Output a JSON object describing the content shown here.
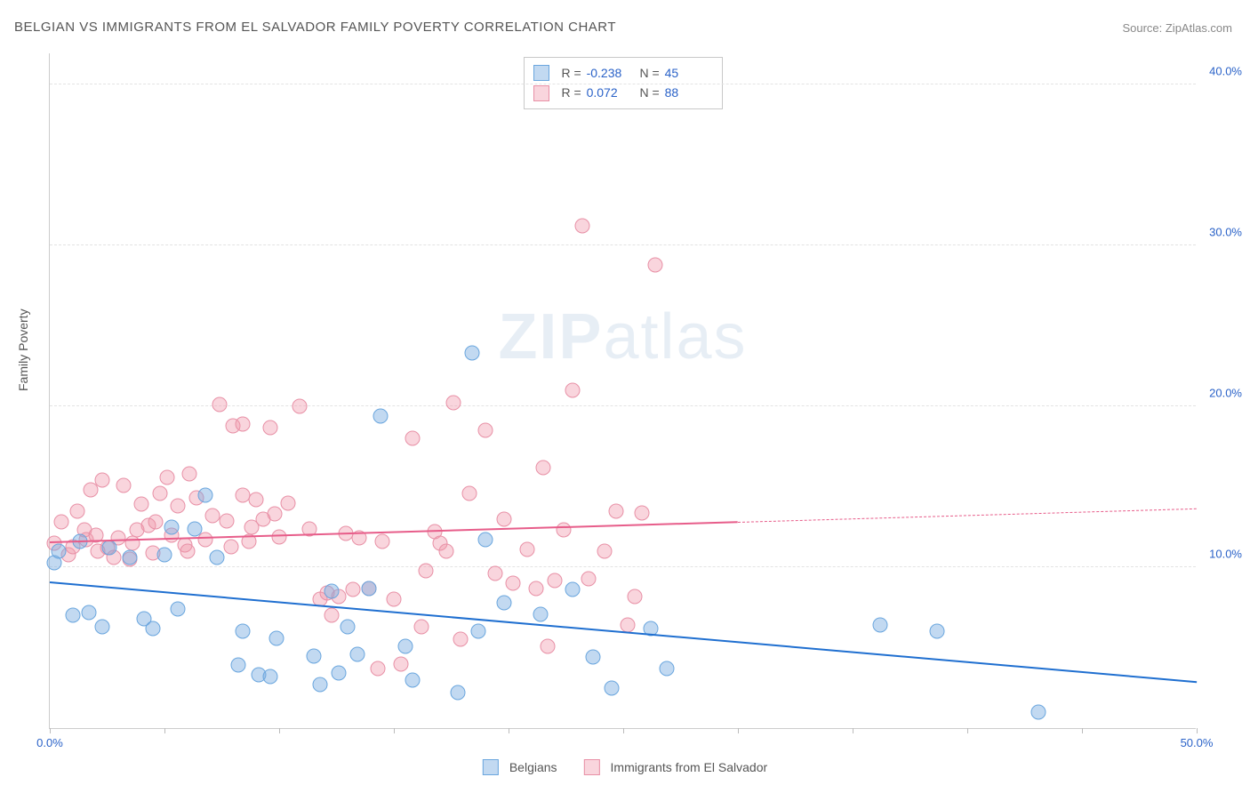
{
  "title": "BELGIAN VS IMMIGRANTS FROM EL SALVADOR FAMILY POVERTY CORRELATION CHART",
  "source_prefix": "Source: ",
  "source_name": "ZipAtlas.com",
  "y_axis_label": "Family Poverty",
  "watermark_a": "ZIP",
  "watermark_b": "atlas",
  "colors": {
    "series_a_fill": "rgba(120,170,225,0.45)",
    "series_a_stroke": "#6aa6de",
    "series_a_line": "#1f6fd0",
    "series_b_fill": "rgba(240,150,170,0.4)",
    "series_b_stroke": "#e890a6",
    "series_b_line": "#e75d8a",
    "tick_text": "#2a62c8",
    "grid": "#e3e3e3",
    "axis": "#ccc"
  },
  "chart": {
    "type": "scatter",
    "xlim": [
      0,
      50
    ],
    "ylim": [
      0,
      42
    ],
    "xticks": [
      0,
      5,
      10,
      15,
      20,
      25,
      30,
      35,
      40,
      45,
      50
    ],
    "xtick_labels": {
      "0": "0.0%",
      "50": "50.0%"
    },
    "yticks": [
      10,
      20,
      30,
      40
    ],
    "ytick_labels": {
      "10": "10.0%",
      "20": "20.0%",
      "30": "30.0%",
      "40": "40.0%"
    },
    "marker_radius": 8.5,
    "marker_stroke_width": 1,
    "line_width": 2
  },
  "stats": {
    "r_label": "R =",
    "n_label": "N =",
    "series_a": {
      "R": "-0.238",
      "N": "45"
    },
    "series_b": {
      "R": "0.072",
      "N": "88"
    }
  },
  "legend": {
    "series_a": "Belgians",
    "series_b": "Immigrants from El Salvador"
  },
  "trend": {
    "series_a": {
      "x1": 0,
      "y1": 9.0,
      "x2": 50,
      "y2": 2.8,
      "solid_until_x": 50
    },
    "series_b": {
      "x1": 0,
      "y1": 11.5,
      "x2": 50,
      "y2": 13.6,
      "solid_until_x": 30
    }
  },
  "series_a_points": [
    [
      0.2,
      10.3
    ],
    [
      0.4,
      11.0
    ],
    [
      1.0,
      7.0
    ],
    [
      1.3,
      11.6
    ],
    [
      1.7,
      7.2
    ],
    [
      2.3,
      6.3
    ],
    [
      2.6,
      11.2
    ],
    [
      3.5,
      10.6
    ],
    [
      4.1,
      6.8
    ],
    [
      4.5,
      6.2
    ],
    [
      5.0,
      10.8
    ],
    [
      5.3,
      12.5
    ],
    [
      5.6,
      7.4
    ],
    [
      6.3,
      12.4
    ],
    [
      6.8,
      14.5
    ],
    [
      7.3,
      10.6
    ],
    [
      8.2,
      3.9
    ],
    [
      8.4,
      6.0
    ],
    [
      9.1,
      3.3
    ],
    [
      9.6,
      3.2
    ],
    [
      9.9,
      5.6
    ],
    [
      11.5,
      4.5
    ],
    [
      11.8,
      2.7
    ],
    [
      12.3,
      8.5
    ],
    [
      12.6,
      3.4
    ],
    [
      13.0,
      6.3
    ],
    [
      13.4,
      4.6
    ],
    [
      13.9,
      8.7
    ],
    [
      14.4,
      19.4
    ],
    [
      15.5,
      5.1
    ],
    [
      15.8,
      3.0
    ],
    [
      17.8,
      2.2
    ],
    [
      18.4,
      23.3
    ],
    [
      18.7,
      6.0
    ],
    [
      19.0,
      11.7
    ],
    [
      19.8,
      7.8
    ],
    [
      21.4,
      7.1
    ],
    [
      22.8,
      8.6
    ],
    [
      23.7,
      4.4
    ],
    [
      24.5,
      2.5
    ],
    [
      26.2,
      6.2
    ],
    [
      26.9,
      3.7
    ],
    [
      36.2,
      6.4
    ],
    [
      38.7,
      6.0
    ],
    [
      43.1,
      1.0
    ]
  ],
  "series_b_points": [
    [
      0.2,
      11.5
    ],
    [
      0.5,
      12.8
    ],
    [
      0.8,
      10.8
    ],
    [
      1.0,
      11.3
    ],
    [
      1.2,
      13.5
    ],
    [
      1.5,
      12.3
    ],
    [
      1.8,
      14.8
    ],
    [
      2.1,
      11.0
    ],
    [
      2.3,
      15.4
    ],
    [
      2.5,
      11.2
    ],
    [
      2.8,
      10.6
    ],
    [
      3.0,
      11.8
    ],
    [
      3.2,
      15.1
    ],
    [
      3.5,
      10.5
    ],
    [
      3.8,
      12.3
    ],
    [
      4.0,
      13.9
    ],
    [
      4.3,
      12.6
    ],
    [
      4.5,
      10.9
    ],
    [
      4.8,
      14.6
    ],
    [
      5.1,
      15.6
    ],
    [
      5.3,
      12.0
    ],
    [
      5.6,
      13.8
    ],
    [
      5.9,
      11.4
    ],
    [
      6.1,
      15.8
    ],
    [
      6.4,
      14.3
    ],
    [
      6.8,
      11.7
    ],
    [
      7.1,
      13.2
    ],
    [
      7.4,
      20.1
    ],
    [
      7.7,
      12.9
    ],
    [
      8.0,
      18.8
    ],
    [
      8.4,
      18.9
    ],
    [
      8.4,
      14.5
    ],
    [
      8.7,
      11.6
    ],
    [
      9.0,
      14.2
    ],
    [
      9.3,
      13.0
    ],
    [
      9.6,
      18.7
    ],
    [
      10.0,
      11.9
    ],
    [
      10.4,
      14.0
    ],
    [
      10.9,
      20.0
    ],
    [
      11.3,
      12.4
    ],
    [
      11.8,
      8.0
    ],
    [
      12.1,
      8.4
    ],
    [
      12.3,
      7.0
    ],
    [
      12.6,
      8.2
    ],
    [
      12.9,
      12.1
    ],
    [
      13.2,
      8.6
    ],
    [
      13.5,
      11.8
    ],
    [
      13.9,
      8.7
    ],
    [
      14.3,
      3.7
    ],
    [
      14.5,
      11.6
    ],
    [
      15.0,
      8.0
    ],
    [
      15.3,
      4.0
    ],
    [
      15.8,
      18.0
    ],
    [
      16.2,
      6.3
    ],
    [
      16.4,
      9.8
    ],
    [
      16.8,
      12.2
    ],
    [
      17.0,
      11.5
    ],
    [
      17.3,
      11.0
    ],
    [
      17.6,
      20.2
    ],
    [
      17.9,
      5.5
    ],
    [
      18.3,
      14.6
    ],
    [
      19.0,
      18.5
    ],
    [
      19.4,
      9.6
    ],
    [
      19.8,
      13.0
    ],
    [
      20.2,
      9.0
    ],
    [
      20.8,
      11.1
    ],
    [
      21.2,
      8.7
    ],
    [
      21.5,
      16.2
    ],
    [
      21.7,
      5.1
    ],
    [
      22.0,
      9.2
    ],
    [
      22.4,
      12.3
    ],
    [
      22.8,
      21.0
    ],
    [
      23.2,
      31.2
    ],
    [
      23.5,
      9.3
    ],
    [
      24.2,
      11.0
    ],
    [
      24.7,
      13.5
    ],
    [
      25.2,
      6.4
    ],
    [
      25.5,
      8.2
    ],
    [
      25.8,
      13.4
    ],
    [
      26.4,
      28.8
    ],
    [
      1.6,
      11.7
    ],
    [
      2.0,
      12.0
    ],
    [
      3.6,
      11.5
    ],
    [
      4.6,
      12.8
    ],
    [
      6.0,
      11.0
    ],
    [
      7.9,
      11.3
    ],
    [
      8.8,
      12.5
    ],
    [
      9.8,
      13.3
    ]
  ]
}
